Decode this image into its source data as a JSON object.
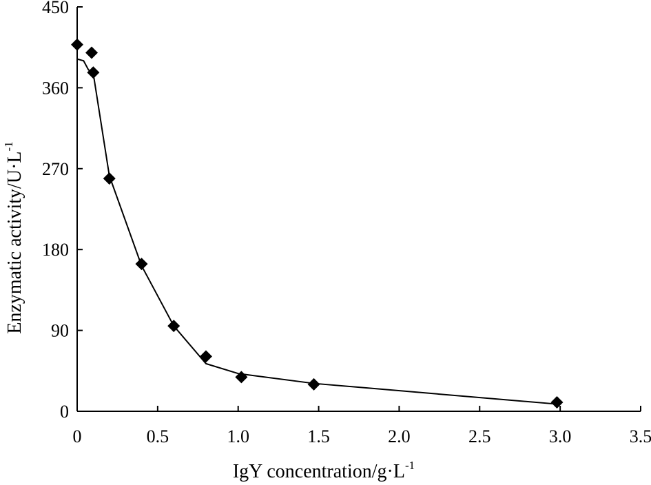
{
  "chart_data": {
    "type": "scatter",
    "title": "",
    "xlabel": "IgY concentration/g·L",
    "xlabel_superscript": "-1",
    "ylabel": "Enzymatic activity/U·L",
    "ylabel_superscript": "-1",
    "xlim": [
      0,
      3.5
    ],
    "ylim": [
      0,
      450
    ],
    "x_ticks": [
      0,
      0.5,
      1.0,
      1.5,
      2.0,
      2.5,
      3.0,
      3.5
    ],
    "x_tick_labels": [
      "0",
      "0.5",
      "1.0",
      "1.5",
      "2.0",
      "2.5",
      "3.0",
      "3.5"
    ],
    "y_ticks": [
      0,
      90,
      180,
      270,
      360,
      450
    ],
    "y_tick_labels": [
      "0",
      "90",
      "180",
      "270",
      "360",
      "450"
    ],
    "grid": false,
    "series": [
      {
        "marker": "diamond",
        "color": "#000000",
        "x": [
          0.0,
          0.09,
          0.1,
          0.2,
          0.4,
          0.6,
          0.8,
          1.02,
          1.47,
          2.98
        ],
        "y": [
          408,
          399,
          377,
          259,
          164,
          95,
          61,
          38,
          30,
          10
        ]
      },
      {
        "style": "line",
        "color": "#000000",
        "x": [
          0.0,
          0.04,
          0.07,
          0.1,
          0.2,
          0.4,
          0.6,
          0.8,
          1.0,
          1.47,
          2.98
        ],
        "y": [
          392,
          390,
          380,
          376,
          262,
          162,
          95,
          53,
          42,
          31,
          8
        ]
      }
    ]
  }
}
